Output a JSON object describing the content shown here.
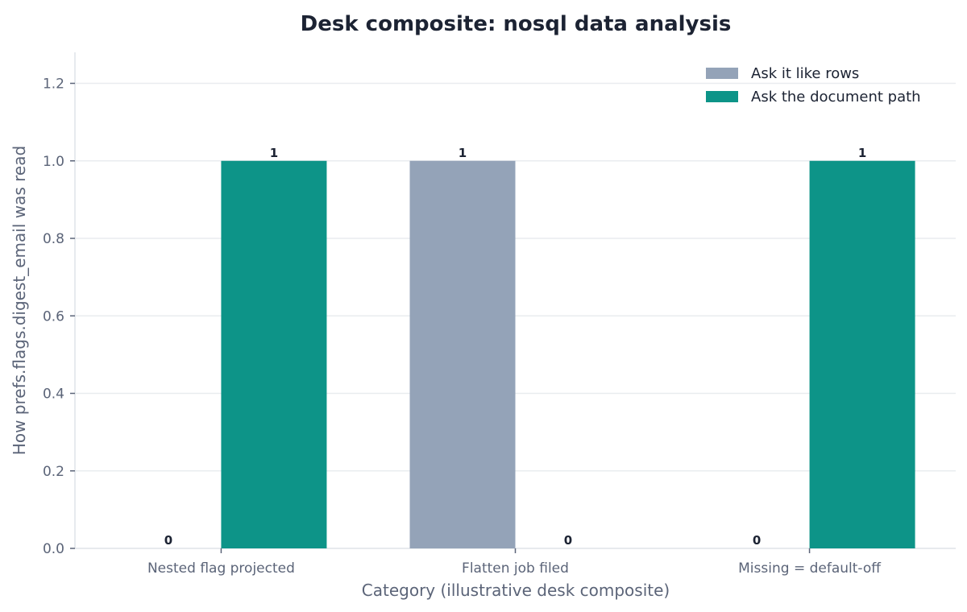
{
  "chart_data": {
    "type": "bar",
    "title": "Desk composite: nosql data analysis",
    "xlabel": "Category (illustrative desk composite)",
    "ylabel": "How prefs.flags.digest_email was read",
    "categories": [
      "Nested flag projected",
      "Flatten job filed",
      "Missing = default-off"
    ],
    "series": [
      {
        "name": "Ask it like rows",
        "values": [
          0,
          1,
          0
        ],
        "color": "#94a3b8"
      },
      {
        "name": "Ask the document path",
        "values": [
          1,
          0,
          1
        ],
        "color": "#0d9488"
      }
    ],
    "ylim": [
      0,
      1.28
    ],
    "yticks": [
      "0.0",
      "0.2",
      "0.4",
      "0.6",
      "0.8",
      "1.0",
      "1.2"
    ],
    "ytick_values": [
      0,
      0.2,
      0.4,
      0.6,
      0.8,
      1.0,
      1.2
    ],
    "data_labels": true,
    "grid": "horizontal",
    "legend_position": "top-right"
  }
}
